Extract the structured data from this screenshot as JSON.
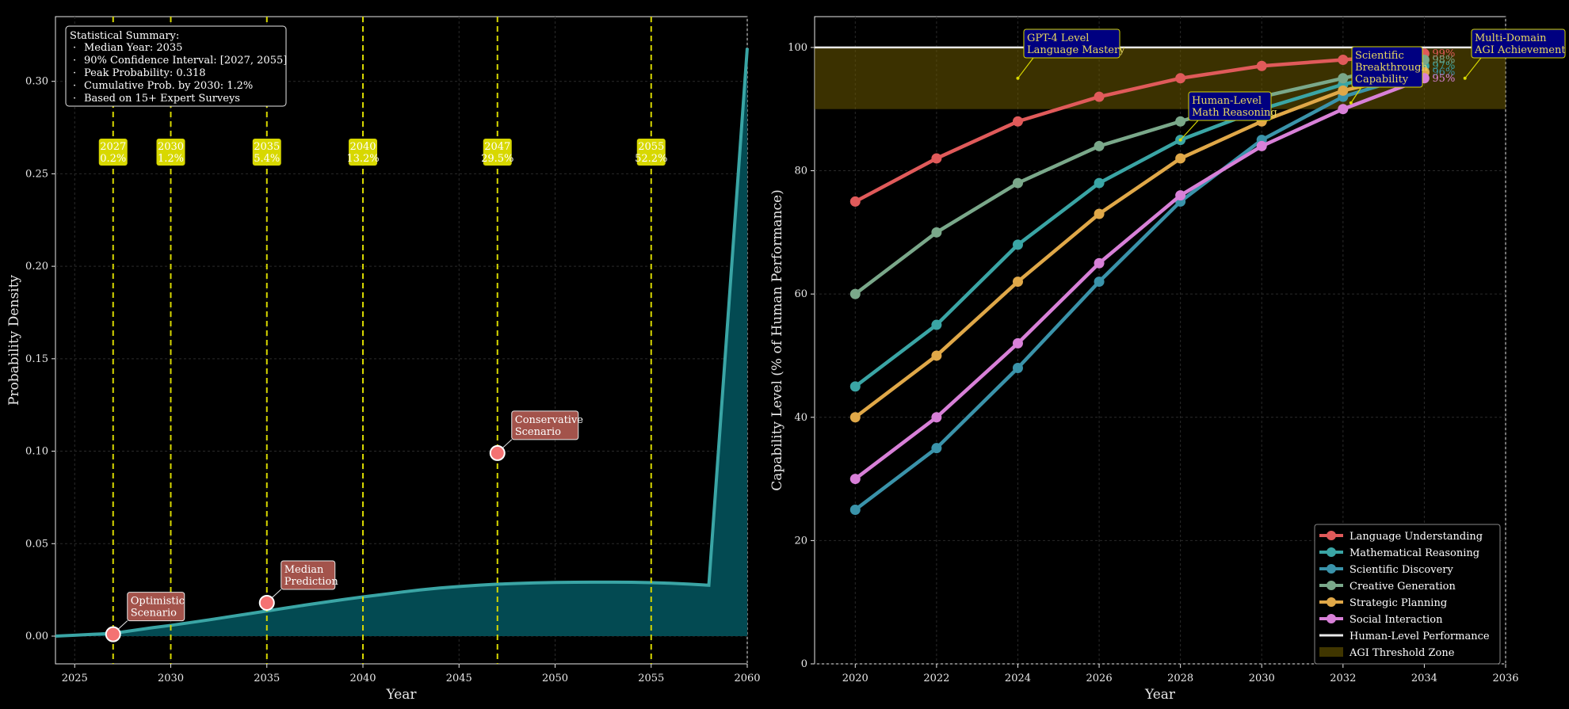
{
  "chart_data": [
    {
      "type": "area",
      "xlabel": "Year",
      "ylabel": "Probability Density",
      "xlim": [
        2024,
        2060
      ],
      "ylim": [
        -0.015,
        0.335
      ],
      "x_ticks": [
        2025,
        2030,
        2035,
        2040,
        2045,
        2050,
        2055,
        2060
      ],
      "y_ticks": [
        "0.00",
        "0.05",
        "0.10",
        "0.15",
        "0.20",
        "0.25",
        "0.30"
      ],
      "grid": true,
      "series": [
        {
          "x": [
            2024,
            2025,
            2026,
            2027,
            2028,
            2029,
            2030,
            2031,
            2032,
            2033,
            2034,
            2035,
            2036,
            2037,
            2038,
            2039,
            2040,
            2041,
            2042,
            2043,
            2044,
            2045,
            2046,
            2047,
            2048,
            2049,
            2050,
            2051,
            2052,
            2053,
            2054,
            2055,
            2056,
            2057,
            2058,
            2060
          ],
          "values": [
            0.0,
            0.0005,
            0.001,
            0.0015,
            0.003,
            0.0045,
            0.0058,
            0.0073,
            0.0088,
            0.0104,
            0.012,
            0.0136,
            0.0152,
            0.0168,
            0.0183,
            0.0198,
            0.0212,
            0.0225,
            0.0238,
            0.025,
            0.026,
            0.0268,
            0.0275,
            0.0281,
            0.0285,
            0.0288,
            0.029,
            0.0291,
            0.0292,
            0.0292,
            0.0291,
            0.0289,
            0.0286,
            0.0281,
            0.0275,
            0.318
          ]
        }
      ],
      "percentile_lines": [
        {
          "year": 2027,
          "label_year": "2027",
          "label_pct": "0.2%"
        },
        {
          "year": 2030,
          "label_year": "2030",
          "label_pct": "1.2%"
        },
        {
          "year": 2035,
          "label_year": "2035",
          "label_pct": "5.4%"
        },
        {
          "year": 2040,
          "label_year": "2040",
          "label_pct": "13.2%"
        },
        {
          "year": 2047,
          "label_year": "2047",
          "label_pct": "29.5%"
        },
        {
          "year": 2055,
          "label_year": "2055",
          "label_pct": "52.2%"
        }
      ],
      "scenarios": [
        {
          "x": 2027,
          "y": 0.001,
          "lines": [
            "Optimistic",
            "Scenario"
          ]
        },
        {
          "x": 2035,
          "y": 0.018,
          "lines": [
            "Median",
            "Prediction"
          ]
        },
        {
          "x": 2047,
          "y": 0.099,
          "lines": [
            "Conservative",
            "Scenario"
          ]
        }
      ],
      "summary": {
        "title": "Statistical Summary:",
        "items": [
          "Median Year: 2035",
          "90% Confidence Interval: [2027, 2055]",
          "Peak Probability: 0.318",
          "Cumulative Prob. by 2030: 1.2%",
          "Based on 15+ Expert Surveys"
        ]
      },
      "colors": {
        "fill": "#034a52",
        "line": "#3aa5a5",
        "percentile": "#d8d800",
        "scenario_marker": "#f47272",
        "scenario_box": "#a3534b"
      }
    },
    {
      "type": "line",
      "xlabel": "Year",
      "ylabel": "Capability Level (% of Human Performance)",
      "xlim": [
        2019,
        2036
      ],
      "ylim": [
        0,
        105
      ],
      "x_ticks": [
        2020,
        2022,
        2024,
        2026,
        2028,
        2030,
        2032,
        2034,
        2036
      ],
      "y_ticks": [
        0,
        20,
        40,
        60,
        80,
        100
      ],
      "x": [
        2020,
        2022,
        2024,
        2026,
        2028,
        2030,
        2032,
        2034
      ],
      "grid": true,
      "legend_position": "bottom-right",
      "series": [
        {
          "name": "Language Understanding",
          "color": "#e05a5a",
          "values": [
            75,
            82,
            88,
            92,
            95,
            97,
            98,
            99
          ],
          "end_label": "99%"
        },
        {
          "name": "Mathematical Reasoning",
          "color": "#3aa5a5",
          "values": [
            45,
            55,
            68,
            78,
            85,
            90,
            94,
            97
          ],
          "end_label": "97%"
        },
        {
          "name": "Scientific Discovery",
          "color": "#3a93aa",
          "values": [
            25,
            35,
            48,
            62,
            75,
            85,
            92,
            96
          ],
          "end_label": "96%"
        },
        {
          "name": "Creative Generation",
          "color": "#7aa88a",
          "values": [
            60,
            70,
            78,
            84,
            88,
            92,
            95,
            98
          ],
          "end_label": "98%"
        },
        {
          "name": "Strategic Planning",
          "color": "#e0a848",
          "values": [
            40,
            50,
            62,
            73,
            82,
            88,
            93,
            96
          ],
          "end_label": ""
        },
        {
          "name": "Social Interaction",
          "color": "#d880d8",
          "values": [
            30,
            40,
            52,
            65,
            76,
            84,
            90,
            95
          ],
          "end_label": "95%"
        }
      ],
      "reference_line": {
        "name": "Human-Level Performance",
        "y": 100,
        "color": "#e8e8e8"
      },
      "threshold_zone": {
        "name": "AGI Threshold Zone",
        "y_range": [
          90,
          100
        ],
        "color": "#6b5a00"
      },
      "annotations": [
        {
          "lines": [
            "GPT-4 Level",
            "Language Mastery"
          ],
          "x": 2024,
          "y": 95
        },
        {
          "lines": [
            "Human-Level",
            "Math Reasoning"
          ],
          "x": 2028,
          "y": 85
        },
        {
          "lines": [
            "Scientific",
            "Breakthrough",
            "Capability"
          ],
          "x": 2032,
          "y": 91
        },
        {
          "lines": [
            "Multi-Domain",
            "AGI Achievement"
          ],
          "x": 2035,
          "y": 95
        }
      ]
    }
  ]
}
